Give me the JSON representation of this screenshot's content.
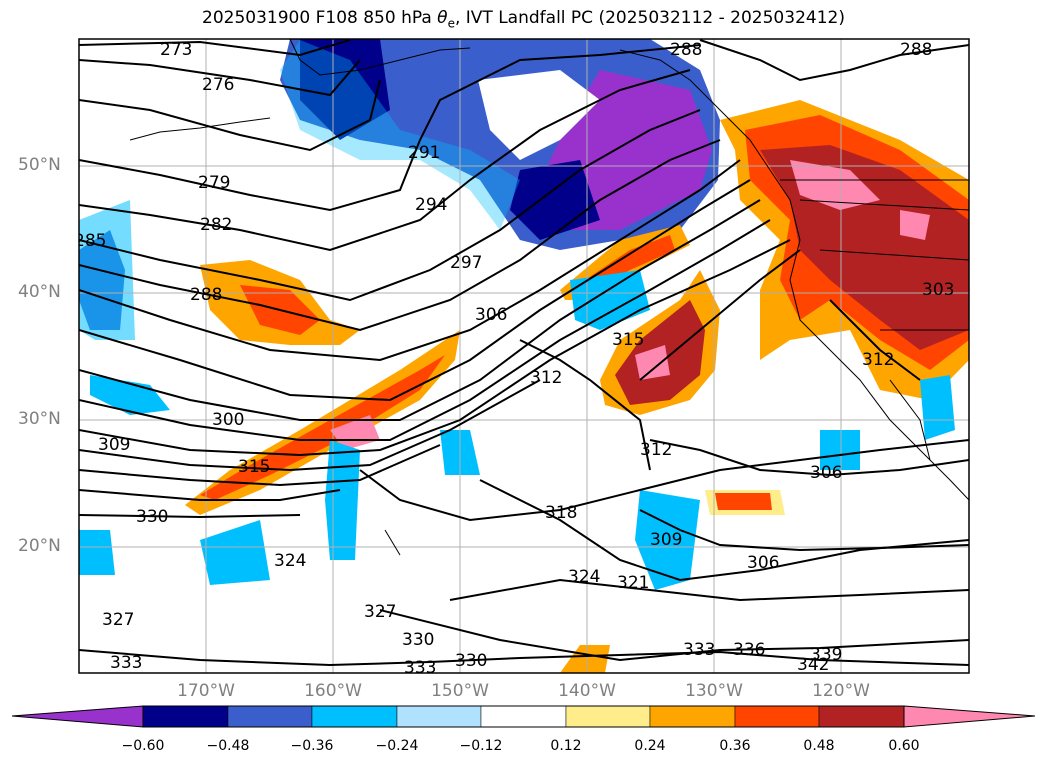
{
  "title": "2025031900 F108 850 hPa θe, IVT Landfall PC (2025032112 - 2025032412)",
  "title_parts": {
    "prefix": "2025031900 F108 850 hPa ",
    "symbol": "θ",
    "subscript": "e",
    "suffix": ", IVT Landfall PC (2025032112 - 2025032412)"
  },
  "lat_labels": [
    "50°N",
    "40°N",
    "30°N",
    "20°N"
  ],
  "lon_labels": [
    "170°W",
    "160°W",
    "150°W",
    "140°W",
    "130°W",
    "120°W"
  ],
  "colorbar": {
    "labels": [
      "−0.60",
      "−0.48",
      "−0.36",
      "−0.24",
      "−0.12",
      "0.12",
      "0.24",
      "0.36",
      "0.48",
      "0.60"
    ],
    "colors": [
      "#9932CC",
      "#00008B",
      "#3A5FCD",
      "#00BFFF",
      "#B0E2FF",
      "#FFFFFF",
      "#FFEC8B",
      "#FFA500",
      "#FF4500",
      "#B22222",
      "#FF88B0"
    ]
  },
  "contour_labels": [
    "273",
    "276",
    "279",
    "282",
    "285",
    "288",
    "288",
    "288",
    "291",
    "294",
    "297",
    "300",
    "303",
    "306",
    "306",
    "306",
    "309",
    "309",
    "312",
    "312",
    "312",
    "315",
    "315",
    "318",
    "321",
    "324",
    "324",
    "327",
    "327",
    "330",
    "330",
    "330",
    "333",
    "333",
    "333",
    "336",
    "339",
    "342"
  ],
  "colors": {
    "label_gray": "#808080",
    "grid": "#b0b0b0",
    "contour": "#000000"
  }
}
